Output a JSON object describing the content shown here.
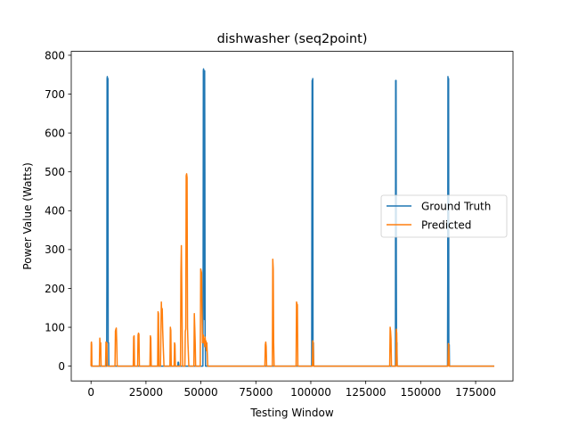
{
  "chart_data": {
    "type": "line",
    "title": "dishwasher (seq2point)",
    "xlabel": "Testing Window",
    "ylabel": "Power Value (Watts)",
    "xlim": [
      -9000,
      192000
    ],
    "ylim": [
      -38,
      810
    ],
    "xticks": [
      0,
      25000,
      50000,
      75000,
      100000,
      125000,
      150000,
      175000
    ],
    "xtick_labels": [
      "0",
      "25000",
      "50000",
      "75000",
      "100000",
      "125000",
      "150000",
      "175000"
    ],
    "yticks": [
      0,
      100,
      200,
      300,
      400,
      500,
      600,
      700,
      800
    ],
    "ytick_labels": [
      "0",
      "100",
      "200",
      "300",
      "400",
      "500",
      "600",
      "700",
      "800"
    ],
    "grid": false,
    "legend_position": "center-right",
    "series": [
      {
        "name": "Ground Truth",
        "color": "#1f77b4",
        "x": [
          0,
          7100,
          7200,
          7300,
          7400,
          7500,
          7600,
          7700,
          7800,
          8000,
          8100,
          39500,
          39600,
          39700,
          39800,
          40000,
          50900,
          51000,
          51100,
          51200,
          51300,
          51400,
          51500,
          51600,
          51700,
          51800,
          51900,
          52000,
          52100,
          100400,
          100500,
          100600,
          100700,
          100800,
          100900,
          101000,
          101200,
          101300,
          138500,
          138600,
          138700,
          138800,
          138900,
          139000,
          139200,
          139300,
          162200,
          162300,
          162400,
          162500,
          162600,
          162700,
          162800,
          163000,
          163100,
          183500
        ],
        "y": [
          0,
          0,
          210,
          740,
          745,
          740,
          255,
          740,
          60,
          60,
          0,
          0,
          10,
          0,
          10,
          0,
          0,
          250,
          760,
          765,
          760,
          400,
          760,
          120,
          760,
          500,
          60,
          60,
          0,
          0,
          470,
          735,
          730,
          735,
          740,
          60,
          60,
          0,
          0,
          735,
          730,
          735,
          260,
          60,
          60,
          0,
          0,
          220,
          745,
          740,
          255,
          740,
          55,
          55,
          0,
          0
        ]
      },
      {
        "name": "Predicted",
        "color": "#ff7f0e",
        "x": [
          0,
          100,
          200,
          300,
          400,
          3800,
          4000,
          4200,
          4400,
          4600,
          6600,
          6800,
          7000,
          7200,
          7400,
          10900,
          11100,
          11300,
          11500,
          11700,
          11900,
          19200,
          19400,
          19600,
          19800,
          21200,
          21400,
          21600,
          21800,
          22000,
          26800,
          27000,
          27200,
          27400,
          30300,
          30500,
          30700,
          30900,
          31600,
          31800,
          32000,
          32200,
          32400,
          32600,
          32800,
          33000,
          33200,
          35900,
          36100,
          36300,
          36500,
          37800,
          38000,
          38200,
          38400,
          40700,
          40900,
          41100,
          41300,
          41500,
          41700,
          42700,
          42900,
          43100,
          43300,
          43500,
          43700,
          43900,
          44100,
          44300,
          44500,
          46800,
          47000,
          47200,
          47400,
          47600,
          49700,
          49900,
          50100,
          50300,
          50500,
          50700,
          50900,
          51100,
          51300,
          51500,
          51700,
          51900,
          52100,
          52300,
          52500,
          52700,
          52900,
          53100,
          79100,
          79300,
          79500,
          79700,
          79900,
          82500,
          82700,
          82900,
          83100,
          83300,
          93300,
          93500,
          93700,
          93900,
          94100,
          100700,
          100900,
          101100,
          101300,
          135900,
          136100,
          136300,
          136500,
          136700,
          138700,
          138900,
          139100,
          139300,
          162400,
          162600,
          162800,
          163000,
          183500
        ],
        "y": [
          0,
          60,
          62,
          55,
          0,
          0,
          72,
          55,
          60,
          0,
          0,
          62,
          58,
          60,
          0,
          0,
          90,
          95,
          98,
          60,
          0,
          0,
          75,
          78,
          0,
          0,
          80,
          85,
          82,
          0,
          0,
          78,
          72,
          0,
          0,
          140,
          135,
          0,
          0,
          90,
          165,
          125,
          148,
          95,
          60,
          30,
          0,
          0,
          100,
          92,
          0,
          0,
          60,
          55,
          0,
          0,
          240,
          310,
          200,
          80,
          0,
          0,
          90,
          95,
          490,
          495,
          485,
          100,
          60,
          30,
          0,
          0,
          135,
          100,
          60,
          0,
          0,
          250,
          245,
          240,
          140,
          60,
          65,
          80,
          60,
          70,
          50,
          75,
          60,
          65,
          40,
          60,
          30,
          0,
          0,
          55,
          62,
          50,
          0,
          0,
          275,
          250,
          60,
          0,
          0,
          165,
          160,
          158,
          0,
          0,
          65,
          60,
          0,
          0,
          100,
          90,
          70,
          0,
          0,
          95,
          85,
          0,
          0,
          58,
          55,
          0,
          0
        ]
      }
    ]
  }
}
